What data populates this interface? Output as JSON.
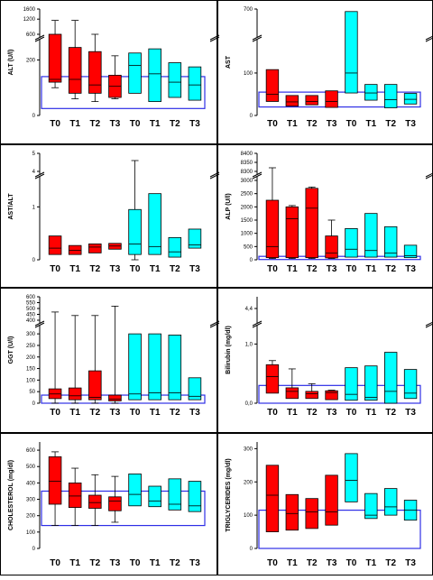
{
  "colors": {
    "group_a": "#ff0000",
    "group_b": "#00ffff",
    "reference_range": "#2e2ee6",
    "panel_border": "#000000",
    "box_stroke": "#000000"
  },
  "chart_data": [
    {
      "type": "box",
      "ylabel": "ALT (U/l)",
      "y_segments": [
        {
          "range": [
            0,
            260
          ],
          "ticks": [
            0,
            200
          ]
        },
        {
          "range": [
            600,
            1600
          ],
          "ticks": [
            600,
            1200,
            1600
          ]
        }
      ],
      "reference_range": [
        25,
        140
      ],
      "categories": [
        "T0",
        "T1",
        "T2",
        "T3",
        "T0",
        "T1",
        "T2",
        "T3"
      ],
      "series": [
        {
          "group": "a",
          "boxes": [
            {
              "q1": 120,
              "median": 130,
              "q3": 560,
              "whisker_low": 100,
              "whisker_high": 1150
            },
            {
              "q1": 80,
              "median": 130,
              "q3": 245,
              "whisker_low": 60,
              "whisker_high": 1150
            },
            {
              "q1": 80,
              "median": 110,
              "q3": 230,
              "whisker_low": 50,
              "whisker_high": 275
            },
            {
              "q1": 65,
              "median": 105,
              "q3": 145,
              "whisker_low": 60,
              "whisker_high": 215
            }
          ]
        },
        {
          "group": "b",
          "boxes": [
            {
              "q1": 80,
              "median": 180,
              "q3": 225,
              "whisker_low": null,
              "whisker_high": null
            },
            {
              "q1": 50,
              "median": 150,
              "q3": 240,
              "whisker_low": null,
              "whisker_high": null
            },
            {
              "q1": 65,
              "median": 120,
              "q3": 190,
              "whisker_low": null,
              "whisker_high": null
            },
            {
              "q1": 55,
              "median": 110,
              "q3": 175,
              "whisker_low": null,
              "whisker_high": null
            }
          ]
        }
      ]
    },
    {
      "type": "box",
      "ylabel": "AST",
      "y_segments": [
        {
          "range": [
            0,
            170
          ],
          "ticks": [
            0,
            100
          ]
        },
        {
          "range": [
            680,
            700
          ],
          "ticks": [
            700
          ]
        }
      ],
      "reference_range": [
        20,
        55
      ],
      "categories": [
        "T0",
        "T1",
        "T2",
        "T3",
        "T0",
        "T1",
        "T2",
        "T3"
      ],
      "series": [
        {
          "group": "a",
          "boxes": [
            {
              "q1": 33,
              "median": 50,
              "q3": 108,
              "whisker_low": null,
              "whisker_high": null
            },
            {
              "q1": 22,
              "median": 32,
              "q3": 47,
              "whisker_low": null,
              "whisker_high": null
            },
            {
              "q1": 25,
              "median": 33,
              "q3": 47,
              "whisker_low": null,
              "whisker_high": null
            },
            {
              "q1": 19,
              "median": 33,
              "q3": 58,
              "whisker_low": null,
              "whisker_high": null
            }
          ]
        },
        {
          "group": "b",
          "boxes": [
            {
              "q1": 53,
              "median": 100,
              "q3": 698,
              "whisker_low": null,
              "whisker_high": null
            },
            {
              "q1": 36,
              "median": 53,
              "q3": 73,
              "whisker_low": null,
              "whisker_high": null
            },
            {
              "q1": 18,
              "median": 37,
              "q3": 73,
              "whisker_low": null,
              "whisker_high": null
            },
            {
              "q1": 27,
              "median": 38,
              "q3": 52,
              "whisker_low": null,
              "whisker_high": null
            }
          ]
        }
      ]
    },
    {
      "type": "box",
      "ylabel": "AST/ALT",
      "y_segments": [
        {
          "range": [
            0,
            1.5
          ],
          "ticks": [
            0,
            1
          ]
        },
        {
          "range": [
            4,
            5
          ],
          "ticks": [
            4,
            5
          ]
        }
      ],
      "reference_range": null,
      "categories": [
        "T0",
        "T1",
        "T2",
        "T3",
        "T0",
        "T1",
        "T2",
        "T3"
      ],
      "series": [
        {
          "group": "a",
          "boxes": [
            {
              "q1": 0.1,
              "median": 0.22,
              "q3": 0.45,
              "whisker_low": null,
              "whisker_high": null
            },
            {
              "q1": 0.1,
              "median": 0.18,
              "q3": 0.27,
              "whisker_low": null,
              "whisker_high": null
            },
            {
              "q1": 0.13,
              "median": 0.24,
              "q3": 0.3,
              "whisker_low": null,
              "whisker_high": null
            },
            {
              "q1": 0.2,
              "median": 0.26,
              "q3": 0.31,
              "whisker_low": null,
              "whisker_high": null
            }
          ]
        },
        {
          "group": "b",
          "boxes": [
            {
              "q1": 0.1,
              "median": 0.3,
              "q3": 0.95,
              "whisker_low": 0.0,
              "whisker_high": 4.6
            },
            {
              "q1": 0.1,
              "median": 0.25,
              "q3": 1.25,
              "whisker_low": null,
              "whisker_high": null
            },
            {
              "q1": 0.05,
              "median": 0.15,
              "q3": 0.42,
              "whisker_low": null,
              "whisker_high": null
            },
            {
              "q1": 0.22,
              "median": 0.28,
              "q3": 0.58,
              "whisker_low": null,
              "whisker_high": null
            }
          ]
        }
      ]
    },
    {
      "type": "box",
      "ylabel": "ALP (U/l)",
      "y_segments": [
        {
          "range": [
            0,
            3000
          ],
          "ticks": [
            0,
            500,
            1000,
            1500,
            2000,
            2500,
            3000
          ]
        },
        {
          "range": [
            8300,
            8400
          ],
          "ticks": [
            8300,
            8350,
            8400
          ]
        }
      ],
      "reference_range": [
        10,
        130
      ],
      "categories": [
        "T0",
        "T1",
        "T2",
        "T3",
        "T0",
        "T1",
        "T2",
        "T3"
      ],
      "series": [
        {
          "group": "a",
          "boxes": [
            {
              "q1": 80,
              "median": 500,
              "q3": 2250,
              "whisker_low": 50,
              "whisker_high": 8320
            },
            {
              "q1": 80,
              "median": 1550,
              "q3": 2000,
              "whisker_low": 50,
              "whisker_high": 2050
            },
            {
              "q1": 80,
              "median": 1950,
              "q3": 2700,
              "whisker_low": 50,
              "whisker_high": 2750
            },
            {
              "q1": 70,
              "median": 250,
              "q3": 900,
              "whisker_low": 50,
              "whisker_high": 1500
            }
          ]
        },
        {
          "group": "b",
          "boxes": [
            {
              "q1": 100,
              "median": 400,
              "q3": 1180,
              "whisker_low": null,
              "whisker_high": null
            },
            {
              "q1": 100,
              "median": 350,
              "q3": 1750,
              "whisker_low": null,
              "whisker_high": null
            },
            {
              "q1": 100,
              "median": 250,
              "q3": 1250,
              "whisker_low": null,
              "whisker_high": null
            },
            {
              "q1": 80,
              "median": 150,
              "q3": 550,
              "whisker_low": null,
              "whisker_high": null
            }
          ]
        }
      ]
    },
    {
      "type": "box",
      "ylabel": "GGT (U/l)",
      "y_segments": [
        {
          "range": [
            0,
            320
          ],
          "ticks": [
            0,
            50,
            100,
            150,
            200,
            250,
            300
          ]
        },
        {
          "range": [
            400,
            600
          ],
          "ticks": [
            400,
            450,
            500,
            550,
            600
          ]
        }
      ],
      "reference_range": [
        0,
        35
      ],
      "categories": [
        "T0",
        "T1",
        "T2",
        "T3",
        "T0",
        "T1",
        "T2",
        "T3"
      ],
      "series": [
        {
          "group": "a",
          "boxes": [
            {
              "q1": 20,
              "median": 40,
              "q3": 62,
              "whisker_low": 0,
              "whisker_high": 470
            },
            {
              "q1": 15,
              "median": 32,
              "q3": 66,
              "whisker_low": 0,
              "whisker_high": 440
            },
            {
              "q1": 15,
              "median": 25,
              "q3": 140,
              "whisker_low": 0,
              "whisker_high": 440
            },
            {
              "q1": 10,
              "median": 18,
              "q3": 35,
              "whisker_low": 0,
              "whisker_high": 520
            }
          ]
        },
        {
          "group": "b",
          "boxes": [
            {
              "q1": 15,
              "median": 40,
              "q3": 300,
              "whisker_low": null,
              "whisker_high": null
            },
            {
              "q1": 15,
              "median": 45,
              "q3": 300,
              "whisker_low": null,
              "whisker_high": null
            },
            {
              "q1": 15,
              "median": 45,
              "q3": 295,
              "whisker_low": null,
              "whisker_high": null
            },
            {
              "q1": 15,
              "median": 30,
              "q3": 110,
              "whisker_low": null,
              "whisker_high": null
            }
          ]
        }
      ]
    },
    {
      "type": "box",
      "ylabel": "Bilirubin (mg/dl)",
      "y_segments": [
        {
          "range": [
            0,
            1.25
          ],
          "ticks": [
            0.0,
            1.0
          ]
        },
        {
          "range": [
            4.3,
            4.5
          ],
          "ticks": [
            4.4
          ]
        }
      ],
      "y_tick_labels": [
        "0,0",
        "1,0",
        "4,4"
      ],
      "reference_range": [
        0.0,
        0.3
      ],
      "categories": [
        "T0",
        "T1",
        "T2",
        "T3",
        "T0",
        "T1",
        "T2",
        "T3"
      ],
      "series": [
        {
          "group": "a",
          "boxes": [
            {
              "q1": 0.17,
              "median": 0.45,
              "q3": 0.65,
              "whisker_low": null,
              "whisker_high": 0.72
            },
            {
              "q1": 0.08,
              "median": 0.2,
              "q3": 0.26,
              "whisker_low": null,
              "whisker_high": 0.58
            },
            {
              "q1": 0.08,
              "median": 0.16,
              "q3": 0.2,
              "whisker_low": null,
              "whisker_high": 0.33
            },
            {
              "q1": 0.06,
              "median": 0.18,
              "q3": 0.21,
              "whisker_low": null,
              "whisker_high": 0.22
            }
          ]
        },
        {
          "group": "b",
          "boxes": [
            {
              "q1": 0.05,
              "median": 0.15,
              "q3": 0.6,
              "whisker_low": null,
              "whisker_high": null
            },
            {
              "q1": 0.05,
              "median": 0.1,
              "q3": 0.63,
              "whisker_low": null,
              "whisker_high": null
            },
            {
              "q1": 0.0,
              "median": 0.2,
              "q3": 0.86,
              "whisker_low": null,
              "whisker_high": null
            },
            {
              "q1": 0.08,
              "median": 0.17,
              "q3": 0.57,
              "whisker_low": null,
              "whisker_high": null
            }
          ]
        }
      ]
    },
    {
      "type": "box",
      "ylabel": "CHOLESTEROL  (mg/dl)",
      "y_segments": [
        {
          "range": [
            0,
            650
          ],
          "ticks": [
            0,
            100,
            200,
            300,
            400,
            500,
            600
          ]
        }
      ],
      "reference_range": [
        140,
        350
      ],
      "categories": [
        "T0",
        "T1",
        "T2",
        "T3",
        "T0",
        "T1",
        "T2",
        "T3"
      ],
      "series": [
        {
          "group": "a",
          "boxes": [
            {
              "q1": 270,
              "median": 410,
              "q3": 560,
              "whisker_low": 140,
              "whisker_high": 590
            },
            {
              "q1": 250,
              "median": 320,
              "q3": 400,
              "whisker_low": 140,
              "whisker_high": 490
            },
            {
              "q1": 245,
              "median": 280,
              "q3": 325,
              "whisker_low": 140,
              "whisker_high": 450
            },
            {
              "q1": 230,
              "median": 290,
              "q3": 315,
              "whisker_low": 160,
              "whisker_high": 440
            }
          ]
        },
        {
          "group": "b",
          "boxes": [
            {
              "q1": 260,
              "median": 330,
              "q3": 455,
              "whisker_low": null,
              "whisker_high": null
            },
            {
              "q1": 255,
              "median": 290,
              "q3": 380,
              "whisker_low": null,
              "whisker_high": null
            },
            {
              "q1": 235,
              "median": 270,
              "q3": 425,
              "whisker_low": null,
              "whisker_high": null
            },
            {
              "q1": 225,
              "median": 260,
              "q3": 410,
              "whisker_low": null,
              "whisker_high": null
            }
          ]
        }
      ]
    },
    {
      "type": "box",
      "ylabel": "TRIGLYCERIDES  (mg/dl)",
      "y_segments": [
        {
          "range": [
            0,
            320
          ],
          "ticks": [
            0,
            100,
            200,
            300
          ]
        }
      ],
      "reference_range": [
        0,
        115
      ],
      "categories": [
        "T0",
        "T1",
        "T2",
        "T3",
        "T0",
        "T1",
        "T2",
        "T3"
      ],
      "series": [
        {
          "group": "a",
          "boxes": [
            {
              "q1": 50,
              "median": 160,
              "q3": 250,
              "whisker_low": null,
              "whisker_high": null
            },
            {
              "q1": 55,
              "median": 105,
              "q3": 162,
              "whisker_low": null,
              "whisker_high": null
            },
            {
              "q1": 60,
              "median": 110,
              "q3": 150,
              "whisker_low": null,
              "whisker_high": null
            },
            {
              "q1": 70,
              "median": 110,
              "q3": 220,
              "whisker_low": null,
              "whisker_high": null
            }
          ]
        },
        {
          "group": "b",
          "boxes": [
            {
              "q1": 140,
              "median": 205,
              "q3": 285,
              "whisker_low": null,
              "whisker_high": null
            },
            {
              "q1": 90,
              "median": 100,
              "q3": 165,
              "whisker_low": null,
              "whisker_high": null
            },
            {
              "q1": 100,
              "median": 125,
              "q3": 180,
              "whisker_low": null,
              "whisker_high": null
            },
            {
              "q1": 85,
              "median": 115,
              "q3": 145,
              "whisker_low": null,
              "whisker_high": null
            }
          ]
        }
      ]
    }
  ]
}
